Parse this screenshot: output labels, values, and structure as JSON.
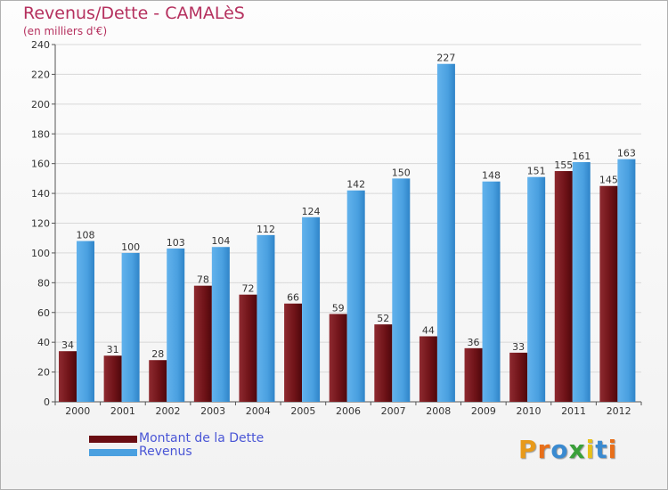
{
  "title": "Revenus/Dette - CAMALèS",
  "subtitle": "(en milliers d'€)",
  "colors": {
    "dette": "#7a1a1f",
    "revenus": "#4aa0e0",
    "title": "#b5305e",
    "legend_text": "#4a56d6"
  },
  "legend": [
    {
      "label": "Montant de la Dette",
      "color": "#6a0d12"
    },
    {
      "label": "Revenus",
      "color": "#4aa0e0"
    }
  ],
  "logo": {
    "text": "Proxiti",
    "letters": [
      "P",
      "r",
      "o",
      "x",
      "i",
      "t",
      "i"
    ],
    "letter_colors": [
      "#e89a1a",
      "#e86f1a",
      "#3a8ad0",
      "#3aa03a",
      "#e8c01a",
      "#3a8ad0",
      "#e86f1a"
    ]
  },
  "chart_data": {
    "type": "bar",
    "title": "Revenus/Dette - CAMALèS",
    "subtitle": "(en milliers d'€)",
    "xlabel": "",
    "ylabel": "",
    "categories": [
      "2000",
      "2001",
      "2002",
      "2003",
      "2004",
      "2005",
      "2006",
      "2007",
      "2008",
      "2009",
      "2010",
      "2011",
      "2012"
    ],
    "series": [
      {
        "name": "Montant de la Dette",
        "values": [
          34,
          31,
          28,
          78,
          72,
          66,
          59,
          52,
          44,
          36,
          33,
          155,
          145
        ]
      },
      {
        "name": "Revenus",
        "values": [
          108,
          100,
          103,
          104,
          112,
          124,
          142,
          150,
          227,
          148,
          151,
          161,
          163
        ]
      }
    ],
    "ylim": [
      0,
      240
    ],
    "yticks": [
      0,
      20,
      40,
      60,
      80,
      100,
      120,
      140,
      160,
      180,
      200,
      220,
      240
    ],
    "grid": true,
    "legend_position": "bottom-left"
  }
}
